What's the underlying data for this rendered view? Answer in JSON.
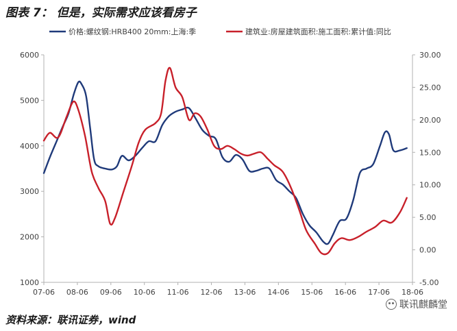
{
  "figure": {
    "title": "图表 7： 但是，实际需求应该看房子",
    "source": "资料来源：联讯证券，wind",
    "watermark": "联讯麒麟堂",
    "watermark_icon": "wechat-icon"
  },
  "chart_data": {
    "type": "line",
    "grid": false,
    "legend_position": "top",
    "x_ticks": [
      "07-06",
      "08-06",
      "09-06",
      "10-06",
      "11-06",
      "12-06",
      "13-06",
      "14-06",
      "15-06",
      "16-06",
      "17-06",
      "18-06"
    ],
    "x_range": [
      2007.42,
      2018.42
    ],
    "y_left": {
      "min": 1000,
      "max": 6000,
      "ticks": [
        "1000",
        "2000",
        "3000",
        "4000",
        "5000",
        "6000"
      ]
    },
    "y_right": {
      "min": -5,
      "max": 30,
      "ticks": [
        "-5.00",
        "0.00",
        "5.00",
        "10.00",
        "15.00",
        "20.00",
        "25.00",
        "30.00"
      ]
    },
    "series": [
      {
        "name": "价格:螺纹钢:HRB400 20mm:上海:季",
        "axis": "left",
        "color": "#1f3a7a",
        "points": [
          [
            2007.42,
            3400
          ],
          [
            2007.6,
            3750
          ],
          [
            2007.8,
            4100
          ],
          [
            2008.0,
            4450
          ],
          [
            2008.15,
            4700
          ],
          [
            2008.32,
            5150
          ],
          [
            2008.45,
            5400
          ],
          [
            2008.55,
            5350
          ],
          [
            2008.68,
            5100
          ],
          [
            2008.8,
            4400
          ],
          [
            2008.92,
            3700
          ],
          [
            2009.05,
            3550
          ],
          [
            2009.25,
            3500
          ],
          [
            2009.45,
            3480
          ],
          [
            2009.6,
            3550
          ],
          [
            2009.75,
            3780
          ],
          [
            2009.95,
            3680
          ],
          [
            2010.15,
            3780
          ],
          [
            2010.35,
            3950
          ],
          [
            2010.55,
            4100
          ],
          [
            2010.75,
            4100
          ],
          [
            2010.95,
            4450
          ],
          [
            2011.15,
            4650
          ],
          [
            2011.35,
            4750
          ],
          [
            2011.55,
            4800
          ],
          [
            2011.75,
            4830
          ],
          [
            2011.95,
            4600
          ],
          [
            2012.15,
            4350
          ],
          [
            2012.35,
            4220
          ],
          [
            2012.55,
            4150
          ],
          [
            2012.75,
            3750
          ],
          [
            2012.95,
            3650
          ],
          [
            2013.15,
            3800
          ],
          [
            2013.35,
            3700
          ],
          [
            2013.55,
            3450
          ],
          [
            2013.75,
            3450
          ],
          [
            2013.95,
            3500
          ],
          [
            2014.15,
            3500
          ],
          [
            2014.35,
            3250
          ],
          [
            2014.55,
            3150
          ],
          [
            2014.75,
            3000
          ],
          [
            2014.95,
            2850
          ],
          [
            2015.15,
            2500
          ],
          [
            2015.35,
            2250
          ],
          [
            2015.55,
            2100
          ],
          [
            2015.75,
            1900
          ],
          [
            2015.9,
            1850
          ],
          [
            2016.05,
            2050
          ],
          [
            2016.25,
            2350
          ],
          [
            2016.45,
            2400
          ],
          [
            2016.65,
            2800
          ],
          [
            2016.85,
            3400
          ],
          [
            2017.05,
            3500
          ],
          [
            2017.25,
            3600
          ],
          [
            2017.45,
            4000
          ],
          [
            2017.6,
            4300
          ],
          [
            2017.72,
            4250
          ],
          [
            2017.85,
            3900
          ],
          [
            2018.05,
            3900
          ],
          [
            2018.25,
            3950
          ]
        ]
      },
      {
        "name": "建筑业:房屋建筑面积:施工面积:累计值:同比",
        "axis": "right",
        "color": "#c8202a",
        "points": [
          [
            2007.42,
            16.8
          ],
          [
            2007.6,
            18.0
          ],
          [
            2007.85,
            17.3
          ],
          [
            2008.1,
            20.5
          ],
          [
            2008.3,
            22.8
          ],
          [
            2008.45,
            21.5
          ],
          [
            2008.65,
            17.5
          ],
          [
            2008.85,
            12.0
          ],
          [
            2009.05,
            9.5
          ],
          [
            2009.25,
            7.5
          ],
          [
            2009.4,
            4.0
          ],
          [
            2009.55,
            5.0
          ],
          [
            2009.8,
            9.0
          ],
          [
            2010.05,
            13.0
          ],
          [
            2010.25,
            16.5
          ],
          [
            2010.45,
            18.5
          ],
          [
            2010.75,
            19.5
          ],
          [
            2010.92,
            21.0
          ],
          [
            2011.05,
            26.0
          ],
          [
            2011.18,
            28.0
          ],
          [
            2011.35,
            25.0
          ],
          [
            2011.55,
            23.5
          ],
          [
            2011.75,
            20.0
          ],
          [
            2011.92,
            21.0
          ],
          [
            2012.1,
            20.5
          ],
          [
            2012.3,
            18.5
          ],
          [
            2012.5,
            16.0
          ],
          [
            2012.7,
            15.5
          ],
          [
            2012.9,
            16.0
          ],
          [
            2013.1,
            15.5
          ],
          [
            2013.3,
            14.8
          ],
          [
            2013.5,
            14.5
          ],
          [
            2013.7,
            14.8
          ],
          [
            2013.9,
            15.0
          ],
          [
            2014.1,
            14.0
          ],
          [
            2014.3,
            13.0
          ],
          [
            2014.55,
            12.0
          ],
          [
            2014.8,
            9.5
          ],
          [
            2015.05,
            6.0
          ],
          [
            2015.25,
            3.0
          ],
          [
            2015.5,
            1.0
          ],
          [
            2015.7,
            -0.5
          ],
          [
            2015.9,
            -0.5
          ],
          [
            2016.1,
            1.0
          ],
          [
            2016.3,
            1.8
          ],
          [
            2016.55,
            1.5
          ],
          [
            2016.8,
            2.0
          ],
          [
            2017.05,
            2.8
          ],
          [
            2017.3,
            3.5
          ],
          [
            2017.55,
            4.5
          ],
          [
            2017.8,
            4.2
          ],
          [
            2018.05,
            5.8
          ],
          [
            2018.25,
            8.0
          ]
        ]
      }
    ]
  }
}
